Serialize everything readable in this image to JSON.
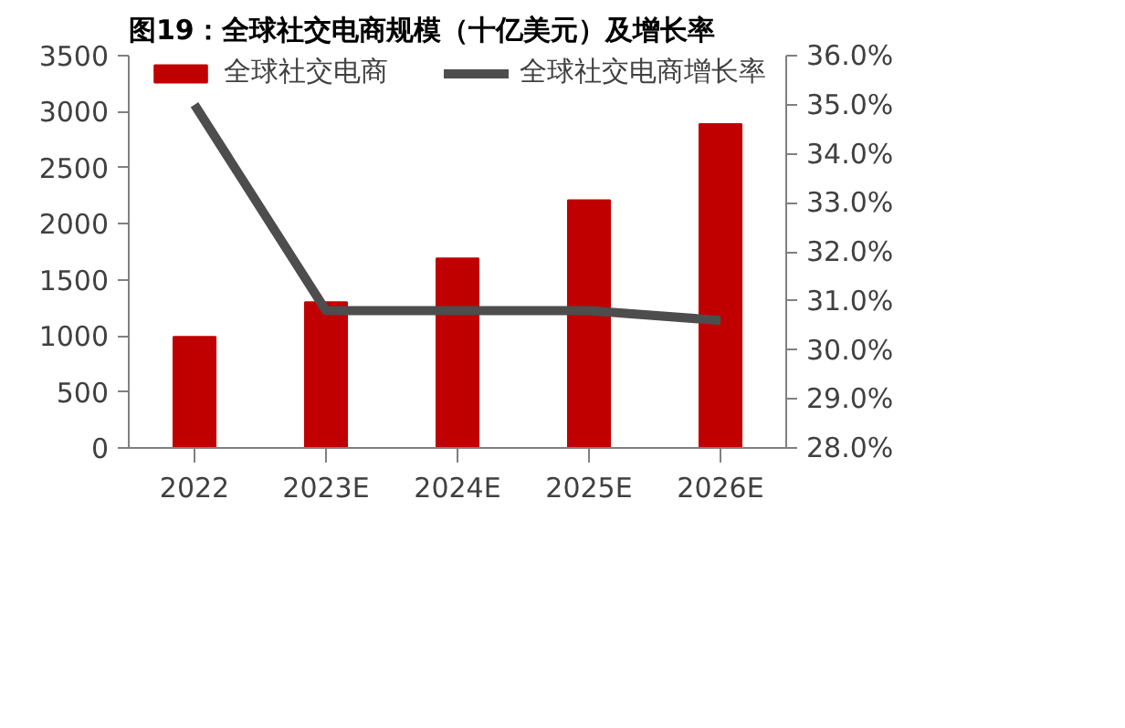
{
  "chart_data": {
    "type": "bar",
    "title": "图19：全球社交电商规模（十亿美元）及增长率",
    "categories": [
      "2022",
      "2023E",
      "2024E",
      "2025E",
      "2026E"
    ],
    "series": [
      {
        "name": "全球社交电商",
        "color": "#c00000",
        "values": [
          990,
          1300,
          1690,
          2210,
          2890
        ]
      },
      {
        "name": "全球社交电商增长率",
        "type": "line",
        "axis": "y2",
        "color": "#4d4d4d",
        "values": [
          35.0,
          30.8,
          30.8,
          30.8,
          30.6
        ]
      }
    ],
    "ylim": [
      0,
      3500
    ],
    "yticks": [
      0,
      500,
      1000,
      1500,
      2000,
      2500,
      3000,
      3500
    ],
    "y2lim": [
      28,
      36
    ],
    "y2ticks": [
      {
        "value": 28,
        "label": "28.0%"
      },
      {
        "value": 29,
        "label": "29.0%"
      },
      {
        "value": 30,
        "label": "30.0%"
      },
      {
        "value": 31,
        "label": "31.0%"
      },
      {
        "value": 32,
        "label": "32.0%"
      },
      {
        "value": 33,
        "label": "33.0%"
      },
      {
        "value": 34,
        "label": "34.0%"
      },
      {
        "value": 35,
        "label": "35.0%"
      },
      {
        "value": 36,
        "label": "36.0%"
      }
    ],
    "legend": "top",
    "grid": false
  }
}
